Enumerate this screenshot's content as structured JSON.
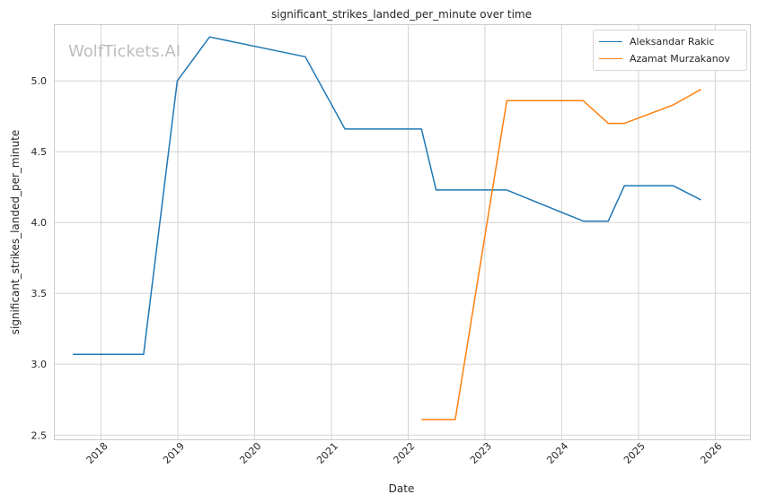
{
  "chart_data": {
    "type": "line",
    "title": "significant_strikes_landed_per_minute over time",
    "xlabel": "Date",
    "ylabel": "significant_strikes_landed_per_minute",
    "x_ticks": [
      "2018",
      "2019",
      "2020",
      "2021",
      "2022",
      "2023",
      "2024",
      "2025",
      "2026"
    ],
    "y_ticks": [
      "2.5",
      "3.0",
      "3.5",
      "4.0",
      "4.5",
      "5.0"
    ],
    "xlim": [
      "2017-05-21",
      "2026-06-15"
    ],
    "ylim": [
      2.47,
      5.4
    ],
    "grid": true,
    "legend_position": "top-right",
    "series": [
      {
        "name": "Aleksandar Rakic",
        "color": "#1f77b4",
        "points": [
          [
            "2017-08-19",
            3.07
          ],
          [
            "2018-07-22",
            3.07
          ],
          [
            "2018-12-29",
            5.0
          ],
          [
            "2019-06-01",
            5.31
          ],
          [
            "2020-08-29",
            5.17
          ],
          [
            "2021-03-06",
            4.66
          ],
          [
            "2022-03-05",
            4.66
          ],
          [
            "2022-05-14",
            4.23
          ],
          [
            "2023-04-15",
            4.23
          ],
          [
            "2024-04-13",
            4.01
          ],
          [
            "2024-08-10",
            4.01
          ],
          [
            "2024-10-26",
            4.26
          ],
          [
            "2025-06-14",
            4.26
          ],
          [
            "2025-10-25",
            4.16
          ]
        ]
      },
      {
        "name": "Azamat Murzakanov",
        "color": "#ff7f0e",
        "points": [
          [
            "2022-03-05",
            2.61
          ],
          [
            "2022-08-13",
            2.61
          ],
          [
            "2023-04-15",
            4.86
          ],
          [
            "2024-04-13",
            4.86
          ],
          [
            "2024-08-10",
            4.7
          ],
          [
            "2024-10-26",
            4.7
          ],
          [
            "2025-06-14",
            4.83
          ],
          [
            "2025-10-25",
            4.94
          ]
        ]
      }
    ]
  },
  "watermark": "WolfTickets.AI"
}
